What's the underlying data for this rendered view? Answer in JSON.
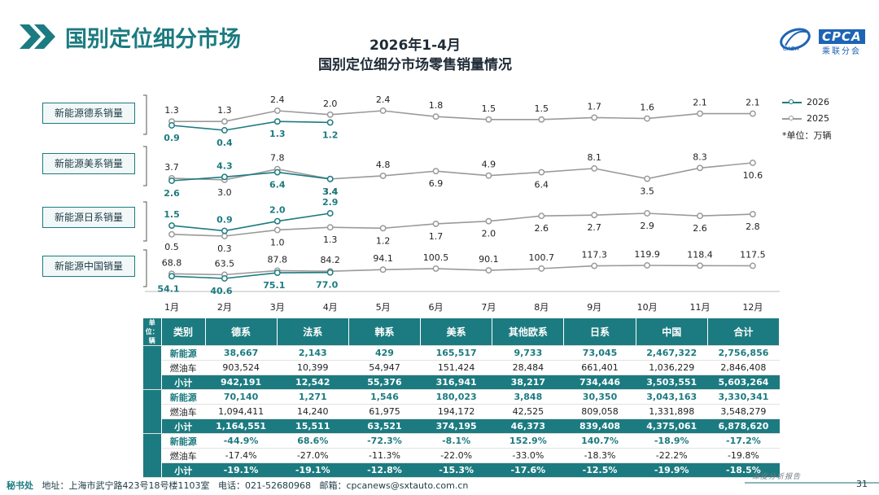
{
  "header": {
    "section_title": "国别定位细分市场",
    "chart_title_line1": "2026年1-4月",
    "chart_title_line2": "国别定位细分市场零售销量情况",
    "logo_text": "CPCA",
    "logo_sub": "乘联分会",
    "logo_small": "CADA"
  },
  "legend": {
    "series_2026": "2026",
    "series_2025": "2025",
    "unit_note": "*单位：万辆"
  },
  "row_labels": [
    "新能源德系销量",
    "新能源美系销量",
    "新能源日系销量",
    "新能源中国销量"
  ],
  "colors": {
    "teal": "#1c7b80",
    "gray": "#9a9a9a",
    "header": "#1c7b80"
  },
  "chart_data": {
    "type": "line",
    "categories": [
      "1月",
      "2月",
      "3月",
      "4月",
      "5月",
      "6月",
      "7月",
      "8月",
      "9月",
      "10月",
      "11月",
      "12月"
    ],
    "panels": [
      {
        "name": "新能源德系销量",
        "series": [
          {
            "name": "2026",
            "values": [
              0.9,
              0.4,
              1.3,
              1.2
            ]
          },
          {
            "name": "2025",
            "values": [
              1.3,
              1.3,
              2.4,
              2.0,
              2.4,
              1.8,
              1.5,
              1.5,
              1.7,
              1.6,
              2.1,
              2.1
            ]
          }
        ]
      },
      {
        "name": "新能源美系销量",
        "series": [
          {
            "name": "2026",
            "values": [
              2.6,
              4.3,
              6.4,
              3.4
            ]
          },
          {
            "name": "2025",
            "values": [
              3.7,
              3.0,
              7.8,
              3.4,
              4.8,
              6.9,
              4.9,
              6.4,
              8.1,
              3.5,
              8.3,
              10.6
            ]
          }
        ]
      },
      {
        "name": "新能源日系销量",
        "series": [
          {
            "name": "2026",
            "values": [
              1.5,
              0.9,
              2.0,
              2.9
            ]
          },
          {
            "name": "2025",
            "values": [
              0.5,
              0.3,
              1.0,
              1.3,
              1.2,
              1.7,
              2.0,
              2.6,
              2.7,
              2.9,
              2.6,
              2.8
            ]
          }
        ]
      },
      {
        "name": "新能源中国销量",
        "series": [
          {
            "name": "2026",
            "values": [
              54.1,
              40.6,
              75.1,
              77.0
            ]
          },
          {
            "name": "2025",
            "values": [
              68.8,
              63.5,
              87.8,
              84.2,
              94.1,
              100.5,
              90.1,
              100.7,
              117.3,
              119.9,
              118.4,
              117.5
            ]
          }
        ]
      }
    ]
  },
  "table": {
    "unit_label": "单位：辆",
    "headers": [
      "类别",
      "德系",
      "法系",
      "韩系",
      "美系",
      "其他欧系",
      "日系",
      "中国",
      "合计"
    ],
    "groups": [
      {
        "label": "本月累计",
        "rows": [
          {
            "type": "nev",
            "cells": [
              "新能源",
              "38,667",
              "2,143",
              "429",
              "165,517",
              "9,733",
              "73,045",
              "2,467,322",
              "2,756,856"
            ]
          },
          {
            "type": "ice",
            "cells": [
              "燃油车",
              "903,524",
              "10,399",
              "54,947",
              "151,424",
              "28,484",
              "661,401",
              "1,036,229",
              "2,846,408"
            ]
          },
          {
            "type": "sub",
            "cells": [
              "小计",
              "942,191",
              "12,542",
              "55,376",
              "316,941",
              "38,217",
              "734,446",
              "3,503,551",
              "5,603,264"
            ]
          }
        ]
      },
      {
        "label": "同期累计",
        "rows": [
          {
            "type": "nev",
            "cells": [
              "新能源",
              "70,140",
              "1,271",
              "1,546",
              "180,023",
              "3,848",
              "30,350",
              "3,043,163",
              "3,330,341"
            ]
          },
          {
            "type": "ice",
            "cells": [
              "燃油车",
              "1,094,411",
              "14,240",
              "61,975",
              "194,172",
              "42,525",
              "809,058",
              "1,331,898",
              "3,548,279"
            ]
          },
          {
            "type": "sub",
            "cells": [
              "小计",
              "1,164,551",
              "15,511",
              "63,521",
              "374,195",
              "46,373",
              "839,408",
              "4,375,061",
              "6,878,620"
            ]
          }
        ]
      },
      {
        "label": "累计同比",
        "rows": [
          {
            "type": "nev",
            "cells": [
              "新能源",
              "-44.9%",
              "68.6%",
              "-72.3%",
              "-8.1%",
              "152.9%",
              "140.7%",
              "-18.9%",
              "-17.2%"
            ]
          },
          {
            "type": "ice",
            "cells": [
              "燃油车",
              "-17.4%",
              "-27.0%",
              "-11.3%",
              "-22.0%",
              "-33.0%",
              "-18.3%",
              "-22.2%",
              "-19.8%"
            ]
          },
          {
            "type": "sub",
            "cells": [
              "小计",
              "-19.1%",
              "-19.1%",
              "-12.8%",
              "-15.3%",
              "-17.6%",
              "-12.5%",
              "-19.9%",
              "-18.5%"
            ]
          }
        ]
      }
    ]
  },
  "footer": {
    "office": "秘书处",
    "address": "地址：上海市武宁路423号18号楼1103室",
    "phone": "电话：021-52680968",
    "email": "邮箱：cpcanews@sxtauto.com.cn",
    "report_tag": "深度分析报告",
    "page_number": "31"
  }
}
